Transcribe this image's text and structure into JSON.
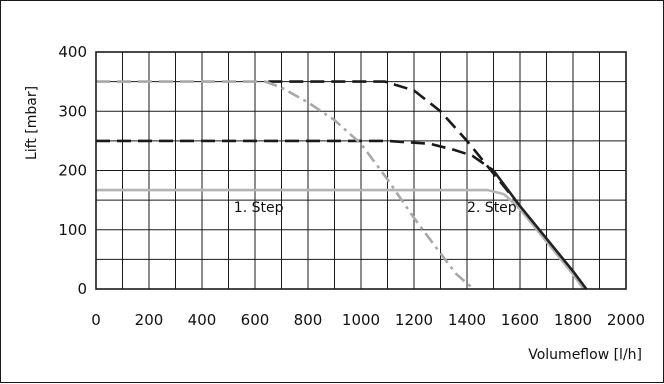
{
  "chart_data": {
    "type": "line",
    "title": "",
    "xlabel": "Volumeflow [l/h]",
    "ylabel": "Lift [mbar]",
    "xlim": [
      0,
      2000
    ],
    "ylim": [
      0,
      400
    ],
    "x_ticks": [
      0,
      200,
      400,
      600,
      800,
      1000,
      1200,
      1400,
      1600,
      1800,
      2000
    ],
    "y_ticks": [
      0,
      100,
      200,
      300,
      400
    ],
    "grid": true,
    "annotations": [
      {
        "text": "1. Step",
        "x": 520,
        "y": 130
      },
      {
        "text": "2. Step",
        "x": 1400,
        "y": 130
      }
    ],
    "series": [
      {
        "style": "dark-dashed",
        "color": "#1a1a1a",
        "dash": "dash",
        "x": [
          650,
          1090,
          1200,
          1300,
          1400,
          1500,
          1600
        ],
        "y": [
          350,
          350,
          335,
          300,
          250,
          195,
          140
        ]
      },
      {
        "style": "dark-dashed",
        "color": "#1a1a1a",
        "dash": "dash",
        "x": [
          0,
          1100,
          1260,
          1350,
          1420,
          1500
        ],
        "y": [
          250,
          250,
          245,
          235,
          225,
          200
        ]
      },
      {
        "style": "gray-dashed",
        "color": "#a8a8a8",
        "dash": "dash",
        "x": [
          0,
          640
        ],
        "y": [
          350,
          350
        ]
      },
      {
        "style": "gray-dashdot",
        "color": "#a8a8a8",
        "dash": "dashdot",
        "x": [
          640,
          700,
          800,
          900,
          1000,
          1100,
          1200,
          1300,
          1360,
          1425
        ],
        "y": [
          350,
          340,
          315,
          285,
          245,
          185,
          120,
          60,
          25,
          0
        ]
      },
      {
        "style": "gray-solid",
        "color": "#b4b4b4",
        "dash": "solid",
        "x": [
          0,
          1480,
          1540,
          1600,
          1700,
          1800,
          1840
        ],
        "y": [
          167,
          167,
          160,
          135,
          80,
          25,
          0
        ]
      },
      {
        "style": "dark-solid",
        "color": "#222222",
        "dash": "solid",
        "x": [
          1500,
          1600,
          1700,
          1800,
          1850
        ],
        "y": [
          200,
          140,
          85,
          30,
          0
        ]
      }
    ]
  }
}
